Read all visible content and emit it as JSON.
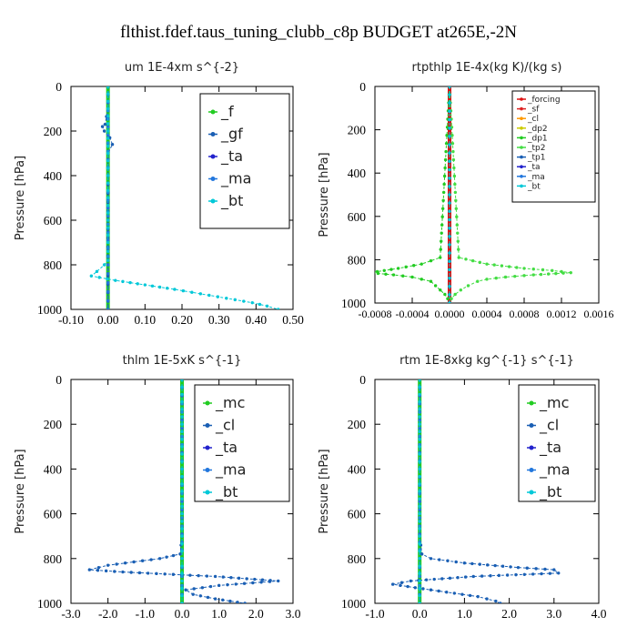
{
  "suptitle": "flthist.fdef.taus_tuning_clubb_c8p  BUDGET at265E,-2N",
  "chart_data": [
    {
      "type": "line",
      "title": "um  1E-4xm s^{-2}",
      "ylabel": "Pressure [hPa]",
      "xlim": [
        -0.1,
        0.5
      ],
      "ylim": [
        1000,
        0
      ],
      "xticks": [
        "-0.10",
        "0.00",
        "0.10",
        "0.20",
        "0.30",
        "0.40",
        "0.50"
      ],
      "yticks": [
        "0",
        "200",
        "400",
        "600",
        "800",
        "1000"
      ],
      "legend_position": "top-right",
      "series": [
        {
          "name": "_f",
          "color": "#22cc22",
          "y": [
            0,
            100,
            200,
            300,
            400,
            500,
            600,
            700,
            800,
            850,
            900,
            950,
            1000
          ],
          "x": [
            0,
            0,
            0,
            0,
            0,
            0,
            0,
            0,
            0,
            0,
            0,
            0,
            0
          ]
        },
        {
          "name": "_gf",
          "color": "#1a5fb4",
          "y": [
            0,
            100,
            170,
            180,
            200,
            230,
            260,
            300,
            400,
            600,
            800,
            850,
            1000
          ],
          "x": [
            0,
            0,
            -0.008,
            -0.015,
            -0.01,
            0.005,
            0.012,
            0,
            0,
            0,
            0,
            0,
            0
          ]
        },
        {
          "name": "_ta",
          "color": "#2222cc",
          "y": [
            0,
            400,
            800,
            1000
          ],
          "x": [
            0,
            0,
            0,
            0
          ]
        },
        {
          "name": "_ma",
          "color": "#2277dd",
          "y": [
            0,
            400,
            800,
            1000
          ],
          "x": [
            0,
            0,
            0,
            0
          ]
        },
        {
          "name": "_bt",
          "color": "#00c8d8",
          "y": [
            0,
            100,
            200,
            300,
            400,
            500,
            600,
            700,
            780,
            800,
            830,
            850,
            870,
            890,
            910,
            930,
            950,
            970,
            985,
            1000
          ],
          "x": [
            0,
            0,
            0,
            0,
            0,
            0,
            0,
            0,
            0,
            -0.01,
            -0.03,
            -0.045,
            0.02,
            0.1,
            0.18,
            0.25,
            0.32,
            0.39,
            0.43,
            0.46
          ]
        }
      ]
    },
    {
      "type": "line",
      "title": "rtpthlp  1E-4x(kg K)/(kg s)",
      "ylabel": "Pressure [hPa]",
      "xlim": [
        -0.0008,
        0.0016
      ],
      "ylim": [
        1000,
        0
      ],
      "xticks": [
        "-0.0008",
        "-0.0004",
        "0.0000",
        "0.0004",
        "0.0008",
        "0.0012",
        "0.0016"
      ],
      "yticks": [
        "0",
        "200",
        "400",
        "600",
        "800",
        "1000"
      ],
      "legend_position": "top-right",
      "series": [
        {
          "name": "_forcing",
          "color": "#dd1111",
          "y": [
            0,
            1000
          ],
          "x": [
            0,
            0
          ]
        },
        {
          "name": "_sf",
          "color": "#dd2222",
          "y": [
            0,
            1000
          ],
          "x": [
            0,
            0
          ]
        },
        {
          "name": "_cl",
          "color": "#ff9900",
          "y": [
            0,
            1000
          ],
          "x": [
            0,
            0
          ]
        },
        {
          "name": "_dp2",
          "color": "#cccc00",
          "y": [
            0,
            1000
          ],
          "x": [
            0,
            0
          ]
        },
        {
          "name": "_dp1",
          "color": "#22cc22",
          "y": [
            0,
            790,
            820,
            840,
            850,
            860,
            870,
            880,
            890,
            900,
            920,
            940,
            960,
            980,
            1000
          ],
          "x": [
            0,
            -0.0001,
            -0.0003,
            -0.00055,
            -0.0007,
            -0.00085,
            -0.0006,
            -0.0004,
            -0.0003,
            -0.0002,
            -0.00015,
            -0.0001,
            -5e-05,
            -2e-05,
            0
          ]
        },
        {
          "name": "_tp2",
          "color": "#44dd44",
          "y": [
            0,
            790,
            820,
            840,
            850,
            860,
            870,
            880,
            890,
            900,
            920,
            940,
            960,
            980,
            1000
          ],
          "x": [
            0,
            0.0001,
            0.0004,
            0.0008,
            0.0011,
            0.0013,
            0.0009,
            0.0006,
            0.0004,
            0.0003,
            0.0002,
            0.00012,
            6e-05,
            2e-05,
            0
          ]
        },
        {
          "name": "_tp1",
          "color": "#1a5fb4",
          "y": [
            0,
            1000
          ],
          "x": [
            0,
            0
          ]
        },
        {
          "name": "_ta",
          "color": "#2222cc",
          "y": [
            0,
            1000
          ],
          "x": [
            0,
            0
          ]
        },
        {
          "name": "_ma",
          "color": "#2277dd",
          "y": [
            0,
            1000
          ],
          "x": [
            0,
            0
          ]
        },
        {
          "name": "_bt",
          "color": "#00c8d8",
          "y": [
            0,
            1000
          ],
          "x": [
            0,
            0
          ]
        }
      ]
    },
    {
      "type": "line",
      "title": "thlm  1E-5xK s^{-1}",
      "ylabel": "Pressure [hPa]",
      "xlim": [
        -3.0,
        3.0
      ],
      "ylim": [
        1000,
        0
      ],
      "xticks": [
        "-3.0",
        "-2.0",
        "-1.0",
        "0.0",
        "1.0",
        "2.0",
        "3.0"
      ],
      "yticks": [
        "0",
        "200",
        "400",
        "600",
        "800",
        "1000"
      ],
      "legend_position": "top-right",
      "series": [
        {
          "name": "_mc",
          "color": "#22cc22",
          "y": [
            0,
            100,
            200,
            300,
            400,
            500,
            600,
            700,
            800,
            900,
            1000
          ],
          "x": [
            0,
            0,
            0,
            0,
            0,
            0,
            0,
            0,
            0,
            0,
            0
          ]
        },
        {
          "name": "_cl",
          "color": "#1a5fb4",
          "y": [
            0,
            100,
            200,
            300,
            400,
            500,
            600,
            700,
            780,
            800,
            830,
            850,
            860,
            880,
            900,
            920,
            940,
            960,
            980,
            1000
          ],
          "x": [
            0,
            0,
            0,
            0,
            0,
            0,
            0,
            0,
            -0.05,
            -0.6,
            -2.0,
            -2.5,
            -1.6,
            0.9,
            2.6,
            1.0,
            0.1,
            0.3,
            0.9,
            1.7
          ]
        },
        {
          "name": "_ta",
          "color": "#2222cc",
          "y": [
            0,
            400,
            800,
            1000
          ],
          "x": [
            0,
            0,
            0,
            0
          ]
        },
        {
          "name": "_ma",
          "color": "#2277dd",
          "y": [
            0,
            400,
            800,
            1000
          ],
          "x": [
            0,
            0,
            0,
            0
          ]
        },
        {
          "name": "_bt",
          "color": "#00c8d8",
          "y": [
            0,
            100,
            200,
            300,
            400,
            500,
            600,
            700,
            800,
            900,
            1000
          ],
          "x": [
            0,
            0,
            0,
            0,
            0,
            0,
            0,
            0,
            0,
            0,
            0
          ]
        }
      ]
    },
    {
      "type": "line",
      "title": "rtm  1E-8xkg kg^{-1} s^{-1}",
      "ylabel": "Pressure [hPa]",
      "xlim": [
        -1.0,
        4.0
      ],
      "ylim": [
        1000,
        0
      ],
      "xticks": [
        "-1.0",
        "0.0",
        "1.0",
        "2.0",
        "3.0",
        "4.0"
      ],
      "yticks": [
        "0",
        "200",
        "400",
        "600",
        "800",
        "1000"
      ],
      "legend_position": "top-right",
      "series": [
        {
          "name": "_mc",
          "color": "#22cc22",
          "y": [
            0,
            100,
            200,
            300,
            400,
            500,
            600,
            700,
            800,
            900,
            1000
          ],
          "x": [
            0,
            0,
            0,
            0,
            0,
            0,
            0,
            0,
            0,
            0,
            0
          ]
        },
        {
          "name": "_cl",
          "color": "#1a5fb4",
          "y": [
            0,
            100,
            200,
            300,
            400,
            500,
            600,
            700,
            780,
            800,
            820,
            840,
            850,
            865,
            880,
            900,
            915,
            930,
            950,
            970,
            990,
            1000
          ],
          "x": [
            0,
            0,
            0,
            0,
            0,
            0,
            0,
            0,
            0.05,
            0.25,
            1.0,
            2.2,
            3.0,
            3.1,
            1.2,
            -0.2,
            -0.6,
            -0.1,
            0.6,
            1.3,
            1.7,
            1.8
          ]
        },
        {
          "name": "_ta",
          "color": "#2222cc",
          "y": [
            0,
            400,
            800,
            1000
          ],
          "x": [
            0,
            0,
            0,
            0
          ]
        },
        {
          "name": "_ma",
          "color": "#2277dd",
          "y": [
            0,
            400,
            800,
            1000
          ],
          "x": [
            0,
            0,
            0,
            0
          ]
        },
        {
          "name": "_bt",
          "color": "#00c8d8",
          "y": [
            0,
            100,
            200,
            300,
            400,
            500,
            600,
            700,
            800,
            900,
            1000
          ],
          "x": [
            0,
            0,
            0,
            0,
            0,
            0,
            0,
            0,
            0,
            0,
            0
          ]
        }
      ]
    }
  ]
}
